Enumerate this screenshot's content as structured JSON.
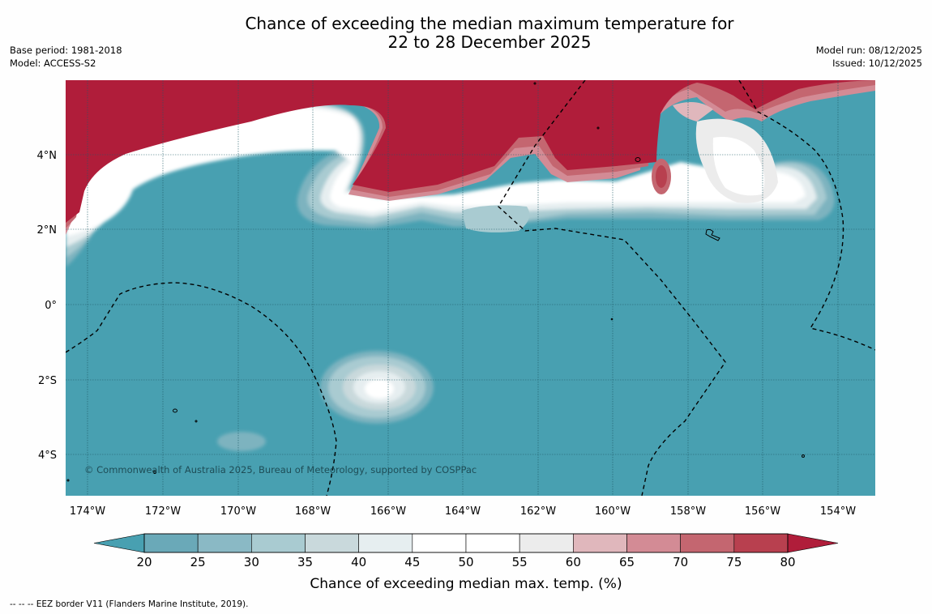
{
  "title": {
    "line1": "Chance of exceeding the median maximum temperature for",
    "line2": "22 to 28 December 2025"
  },
  "meta": {
    "base_period": "Base period: 1981-2018",
    "model": "Model: ACCESS-S2",
    "model_run": "Model run: 08/12/2025",
    "issued": "Issued: 10/12/2025"
  },
  "map": {
    "lat_labels": [
      "4°N",
      "2°N",
      "0°",
      "2°S",
      "4°S"
    ],
    "lon_labels": [
      "174°W",
      "172°W",
      "170°W",
      "168°W",
      "166°W",
      "164°W",
      "162°W",
      "160°W",
      "158°W",
      "156°W",
      "154°W"
    ],
    "copyright": "© Commonwealth of Australia 2025, Bureau of Meteorology, supported by COSPPac"
  },
  "colorbar": {
    "ticks": [
      "20",
      "25",
      "30",
      "35",
      "40",
      "45",
      "50",
      "55",
      "60",
      "65",
      "70",
      "75",
      "80"
    ],
    "colors": [
      "#6aa9b8",
      "#8ab9c5",
      "#a9cbd1",
      "#c9d9dc",
      "#e6eef0",
      "#ffffff",
      "#ffffff",
      "#ececec",
      "#e0b7bc",
      "#d38b95",
      "#c46670",
      "#b8404f"
    ],
    "under_color": "#48a0b1",
    "over_color": "#b01d3a",
    "label": "Chance of exceeding median max. temp. (%)"
  },
  "footnote": "--  --  -- EEZ border V11 (Flanders Marine Institute, 2019)."
}
